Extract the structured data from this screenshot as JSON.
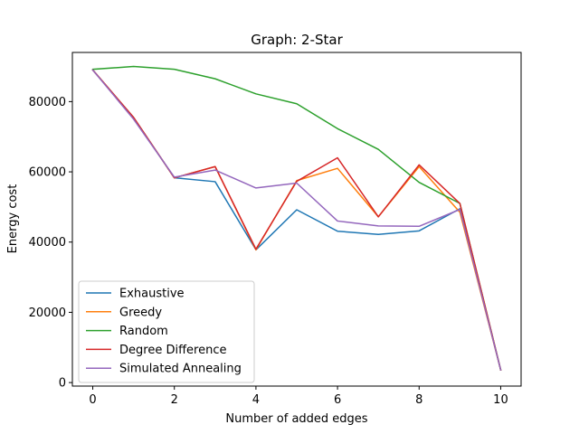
{
  "chart_data": {
    "type": "line",
    "title": "Graph: 2-Star",
    "xlabel": "Number of added edges",
    "ylabel": "Energy cost",
    "xlim": [
      -0.5,
      10.5
    ],
    "ylim": [
      -1000,
      94000
    ],
    "xticks": [
      0,
      2,
      4,
      6,
      8,
      10
    ],
    "yticks": [
      0,
      20000,
      40000,
      60000,
      80000
    ],
    "x": [
      0,
      1,
      2,
      3,
      4,
      5,
      6,
      7,
      8,
      9,
      10
    ],
    "legend_position": "lower-left",
    "grid": false,
    "series": [
      {
        "name": "Exhaustive",
        "color": "#1f77b4",
        "values": [
          89000,
          75500,
          58300,
          57200,
          37800,
          49200,
          43100,
          42200,
          43200,
          49500,
          3600
        ]
      },
      {
        "name": "Greedy",
        "color": "#ff7f0e",
        "values": [
          89000,
          75500,
          58300,
          61500,
          37800,
          57500,
          61000,
          47200,
          61500,
          48500,
          3600
        ]
      },
      {
        "name": "Random",
        "color": "#2ca02c",
        "values": [
          89200,
          90000,
          89200,
          86500,
          82200,
          79400,
          72300,
          66400,
          57000,
          51000,
          3600
        ]
      },
      {
        "name": "Degree Difference",
        "color": "#d62728",
        "values": [
          89000,
          75500,
          58300,
          61500,
          38000,
          57300,
          64000,
          47200,
          62000,
          51000,
          3600
        ]
      },
      {
        "name": "Simulated Annealing",
        "color": "#9467bd",
        "values": [
          89000,
          75000,
          58500,
          60500,
          55400,
          56800,
          46000,
          44600,
          44500,
          49300,
          3600
        ]
      }
    ]
  }
}
